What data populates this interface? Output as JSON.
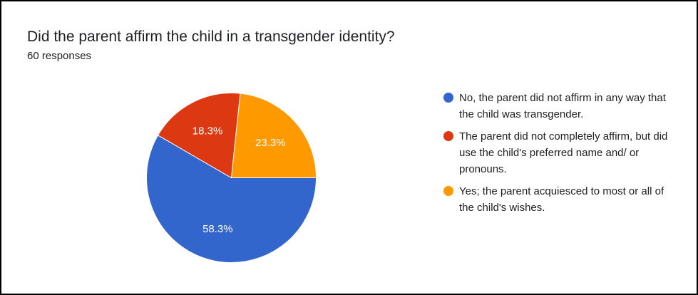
{
  "title": "Did the parent affirm the child in a transgender identity?",
  "subtitle": "60 responses",
  "chart_data": {
    "type": "pie",
    "title": "Did the parent affirm the child in a transgender identity?",
    "legend_placement": "right",
    "slices": [
      {
        "label": "No, the parent did not affirm in any way that the child was transgender.",
        "value": 58.3,
        "display": "58.3%",
        "color": "#3366cc"
      },
      {
        "label": "The parent did not completely affirm, but did use the child's preferred name and/ or pronouns.",
        "value": 18.3,
        "display": "18.3%",
        "color": "#dc3912"
      },
      {
        "label": "Yes; the parent acquiesced to most or all of the child's wishes.",
        "value": 23.3,
        "display": "23.3%",
        "color": "#ff9900"
      }
    ]
  }
}
